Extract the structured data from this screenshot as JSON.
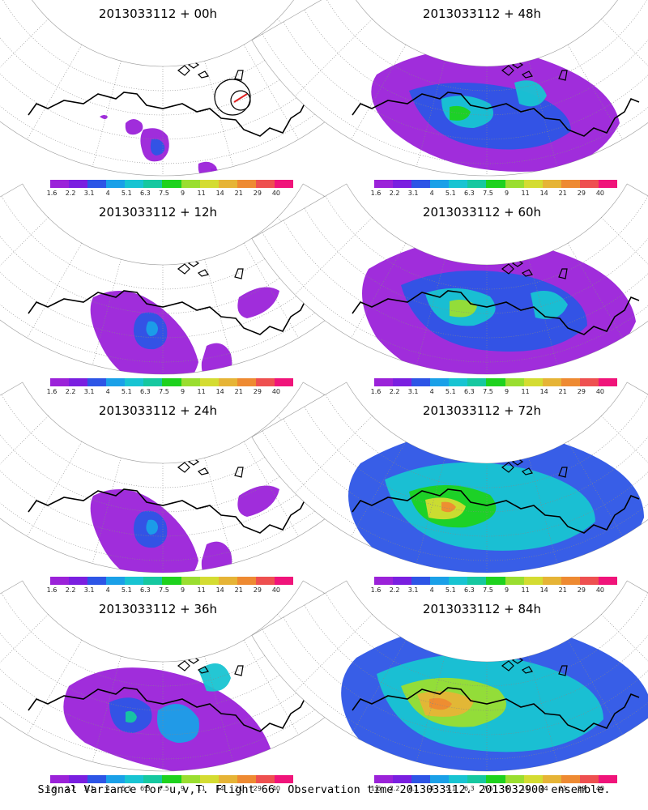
{
  "figure": {
    "caption": "Signal Variance for u,v,T. Flight 66. Observation time 2013033112. 2013032900 ensemble.",
    "panels": [
      {
        "title": "2013033112 + 00h",
        "lead_hours": 0,
        "spread_level": 1
      },
      {
        "title": "2013033112 + 48h",
        "lead_hours": 48,
        "spread_level": 4
      },
      {
        "title": "2013033112 + 12h",
        "lead_hours": 12,
        "spread_level": 2
      },
      {
        "title": "2013033112 + 60h",
        "lead_hours": 60,
        "spread_level": 5
      },
      {
        "title": "2013033112 + 24h",
        "lead_hours": 24,
        "spread_level": 2
      },
      {
        "title": "2013033112 + 72h",
        "lead_hours": 72,
        "spread_level": 6
      },
      {
        "title": "2013033112 + 36h",
        "lead_hours": 36,
        "spread_level": 3
      },
      {
        "title": "2013033112 + 84h",
        "lead_hours": 84,
        "spread_level": 7
      }
    ],
    "colorbar": {
      "labels": [
        "1.6",
        "2.2",
        "3.1",
        "4",
        "5.1",
        "6.3",
        "7.5",
        "9",
        "11",
        "14",
        "21",
        "29",
        "40"
      ],
      "colors": [
        "#9b22d9",
        "#7a1fe0",
        "#2d55e6",
        "#1aa0e8",
        "#18c4d2",
        "#16c8a0",
        "#1ed21e",
        "#9ade30",
        "#d4dc32",
        "#e6b436",
        "#ee8a32",
        "#ee5050",
        "#f0147a"
      ]
    },
    "observation_marker": {
      "circles": 2,
      "color": "#000000",
      "accent": "#e02020"
    }
  }
}
